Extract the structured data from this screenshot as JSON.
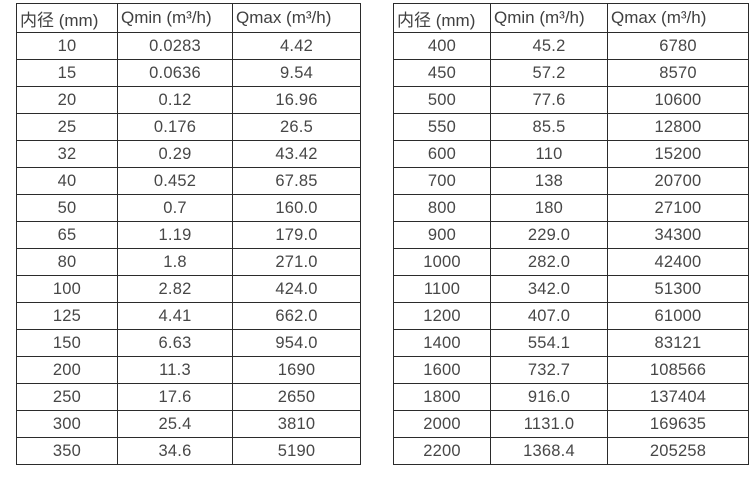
{
  "colors": {
    "text": "#444444",
    "grid_line": "#2b2b2b",
    "background": "#ffffff"
  },
  "tables": [
    {
      "name": "small-diameter-flow-table",
      "headers": [
        "内径 (mm)",
        "Qmin (m³/h)",
        "Qmax (m³/h)"
      ],
      "rows": [
        [
          "10",
          "0.0283",
          "4.42"
        ],
        [
          "15",
          "0.0636",
          "9.54"
        ],
        [
          "20",
          "0.12",
          "16.96"
        ],
        [
          "25",
          "0.176",
          "26.5"
        ],
        [
          "32",
          "0.29",
          "43.42"
        ],
        [
          "40",
          "0.452",
          "67.85"
        ],
        [
          "50",
          "0.7",
          "160.0"
        ],
        [
          "65",
          "1.19",
          "179.0"
        ],
        [
          "80",
          "1.8",
          "271.0"
        ],
        [
          "100",
          "2.82",
          "424.0"
        ],
        [
          "125",
          "4.41",
          "662.0"
        ],
        [
          "150",
          "6.63",
          "954.0"
        ],
        [
          "200",
          "11.3",
          "1690"
        ],
        [
          "250",
          "17.6",
          "2650"
        ],
        [
          "300",
          "25.4",
          "3810"
        ],
        [
          "350",
          "34.6",
          "5190"
        ]
      ]
    },
    {
      "name": "large-diameter-flow-table",
      "headers": [
        "内径 (mm)",
        "Qmin (m³/h)",
        "Qmax (m³/h)"
      ],
      "rows": [
        [
          "400",
          "45.2",
          "6780"
        ],
        [
          "450",
          "57.2",
          "8570"
        ],
        [
          "500",
          "77.6",
          "10600"
        ],
        [
          "550",
          "85.5",
          "12800"
        ],
        [
          "600",
          "110",
          "15200"
        ],
        [
          "700",
          "138",
          "20700"
        ],
        [
          "800",
          "180",
          "27100"
        ],
        [
          "900",
          "229.0",
          "34300"
        ],
        [
          "1000",
          "282.0",
          "42400"
        ],
        [
          "1100",
          "342.0",
          "51300"
        ],
        [
          "1200",
          "407.0",
          "61000"
        ],
        [
          "1400",
          "554.1",
          "83121"
        ],
        [
          "1600",
          "732.7",
          "108566"
        ],
        [
          "1800",
          "916.0",
          "137404"
        ],
        [
          "2000",
          "1131.0",
          "169635"
        ],
        [
          "2200",
          "1368.4",
          "205258"
        ]
      ]
    }
  ]
}
